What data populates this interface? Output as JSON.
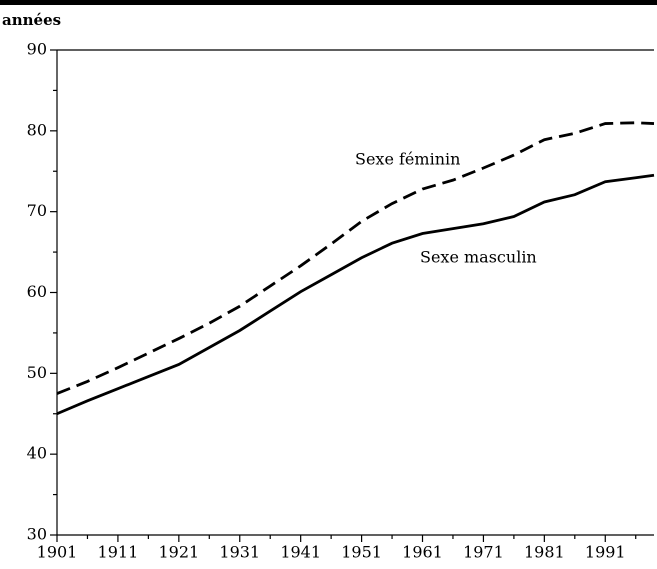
{
  "chart_data": {
    "type": "line",
    "y_label": "années",
    "x": [
      1901,
      1906,
      1911,
      1916,
      1921,
      1926,
      1931,
      1936,
      1941,
      1946,
      1951,
      1956,
      1961,
      1966,
      1971,
      1976,
      1981,
      1986,
      1991,
      1996,
      1999
    ],
    "series": [
      {
        "name": "Sexe féminin",
        "color": "#000000",
        "dash": true,
        "values": [
          47.5,
          49,
          50.7,
          52.5,
          54.3,
          56.2,
          58.3,
          60.8,
          63.3,
          66,
          68.8,
          71,
          72.8,
          73.9,
          75.4,
          77,
          78.9,
          79.7,
          80.9,
          81.0,
          80.9
        ]
      },
      {
        "name": "Sexe masculin",
        "color": "#000000",
        "dash": false,
        "values": [
          45,
          46.6,
          48.1,
          49.6,
          51.1,
          53.2,
          55.3,
          57.7,
          60.1,
          62.2,
          64.3,
          66.1,
          67.3,
          67.9,
          68.5,
          69.4,
          71.2,
          72.1,
          73.7,
          74.2,
          74.5
        ]
      }
    ],
    "xlim": [
      1901,
      1999
    ],
    "xticks": [
      1901,
      1911,
      1921,
      1931,
      1941,
      1951,
      1961,
      1971,
      1981,
      1991
    ],
    "xminorticks": [
      1906,
      1916,
      1926,
      1936,
      1946,
      1956,
      1966,
      1976,
      1986,
      1996
    ],
    "ylim": [
      30,
      90
    ],
    "yticks": [
      30,
      40,
      50,
      60,
      70,
      80,
      90
    ],
    "yminorticks": [
      35,
      45,
      55,
      65,
      75,
      85
    ],
    "grid": false
  }
}
